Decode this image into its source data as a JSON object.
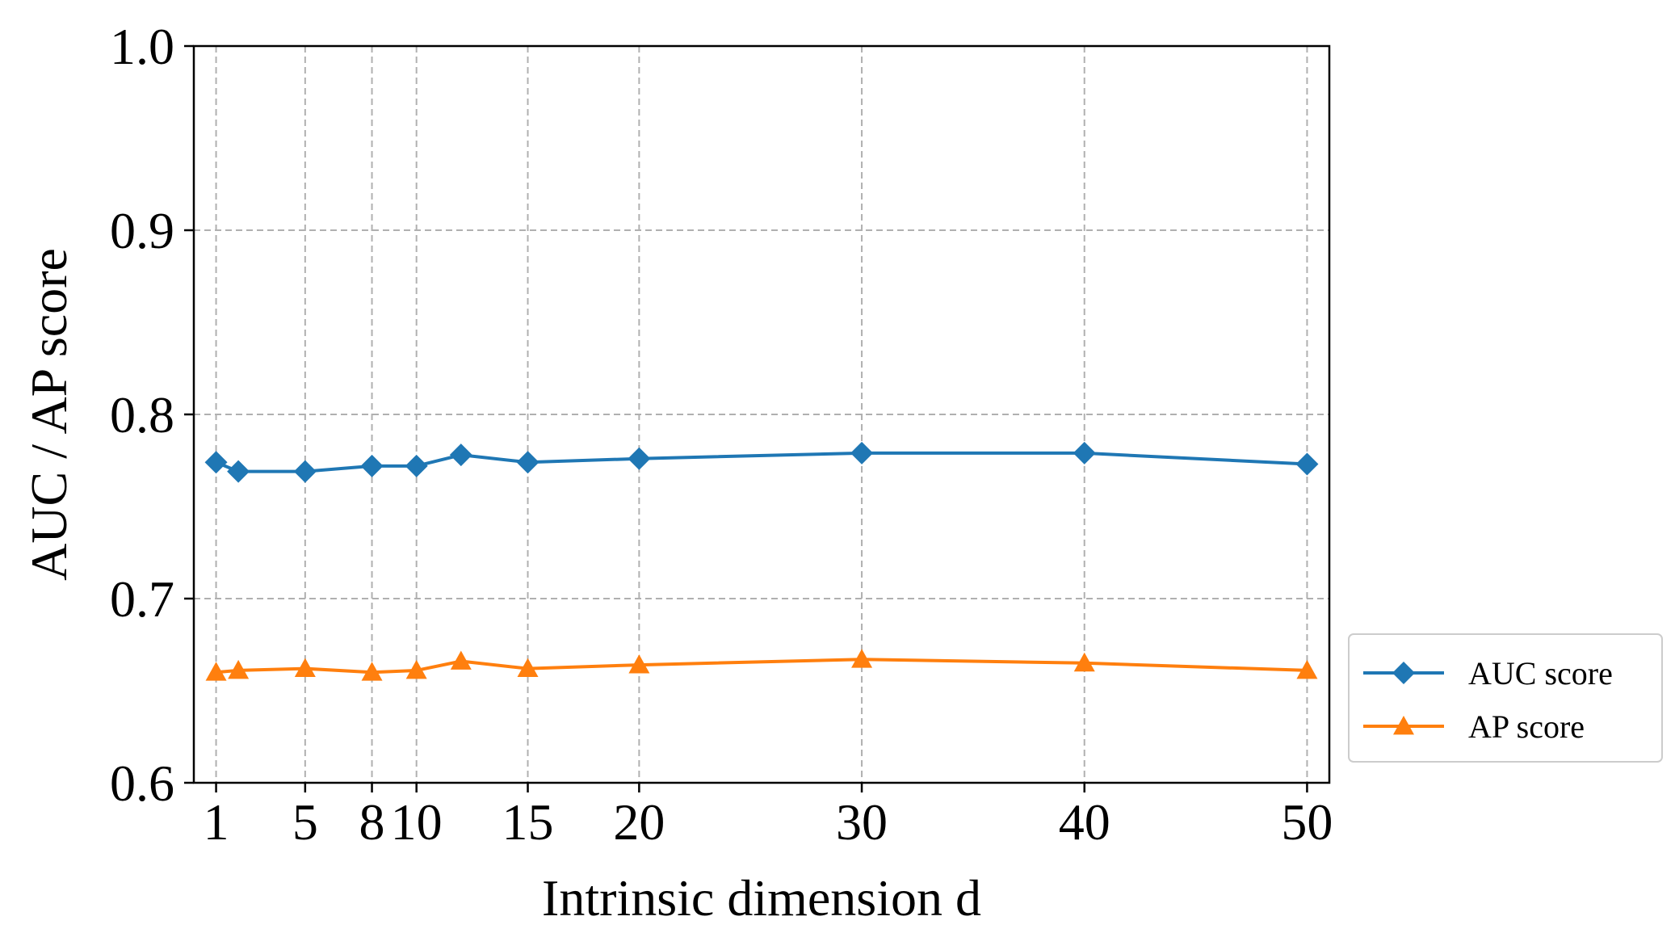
{
  "chart_data": {
    "type": "line",
    "title": "",
    "xlabel": "Intrinsic dimension d",
    "ylabel": "AUC / AP score",
    "xlim": [
      0,
      51
    ],
    "ylim": [
      0.6,
      1.0
    ],
    "xticks": [
      1,
      5,
      8,
      10,
      15,
      20,
      30,
      40,
      50
    ],
    "xtick_labels": [
      "1",
      "5",
      "8",
      "10",
      "15",
      "20",
      "30",
      "40",
      "50"
    ],
    "yticks": [
      0.6,
      0.7,
      0.8,
      0.9,
      1.0
    ],
    "ytick_labels": [
      "0.6",
      "0.7",
      "0.8",
      "0.9",
      "1.0"
    ],
    "grid": true,
    "legend_position": "outside-right-bottom",
    "x": [
      1,
      2,
      5,
      8,
      10,
      12,
      15,
      20,
      30,
      40,
      50
    ],
    "series": [
      {
        "name": "AUC score",
        "color": "#1f77b4",
        "marker": "diamond",
        "values": [
          0.774,
          0.769,
          0.769,
          0.772,
          0.772,
          0.778,
          0.774,
          0.776,
          0.779,
          0.779,
          0.773
        ]
      },
      {
        "name": "AP score",
        "color": "#ff7f0e",
        "marker": "triangle",
        "values": [
          0.66,
          0.661,
          0.662,
          0.66,
          0.661,
          0.666,
          0.662,
          0.664,
          0.667,
          0.665,
          0.661
        ]
      }
    ]
  }
}
